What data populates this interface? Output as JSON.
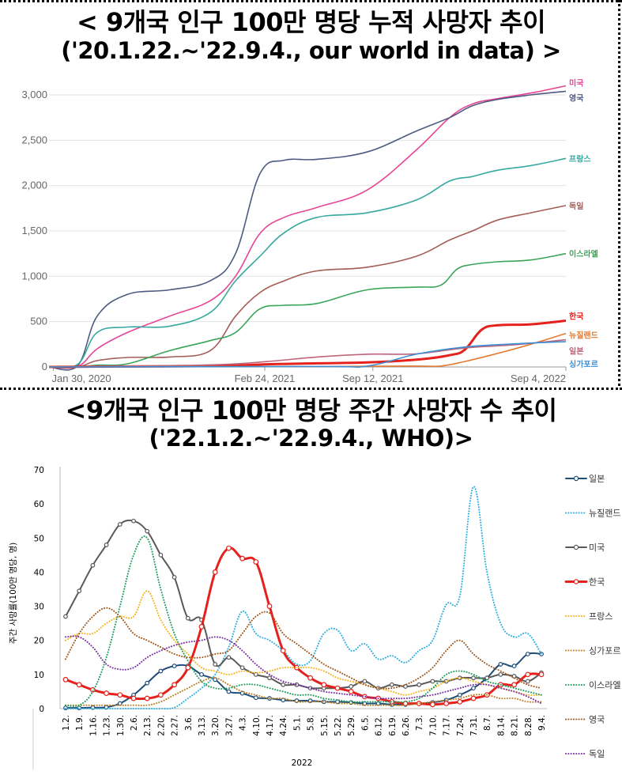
{
  "titles": {
    "chart1_line1": "< 9개국 인구 100만 명당 누적 사망자 추이",
    "chart1_line2": "('20.1.22.~'22.9.4., our world in data) >",
    "chart2_line1": "<9개국 인구 100만 명당 주간 사망자 수 추이",
    "chart2_line2": "('22.1.2.~'22.9.4., WHO)>"
  },
  "chart_data": [
    {
      "type": "line",
      "title": "< 9개국 인구 100만 명당 누적 사망자 추이 ('20.1.22.~'22.9.4., our world in data) >",
      "xlabel": "",
      "ylabel": "",
      "x_range": [
        "2020-01-22",
        "2022-09-04"
      ],
      "x_ticks": [
        {
          "label": "Jan 30, 2020",
          "date": "2020-01-30"
        },
        {
          "label": "Feb 24, 2021",
          "date": "2021-02-24"
        },
        {
          "label": "Sep 12, 2021",
          "date": "2021-09-12"
        },
        {
          "label": "Sep 4, 2022",
          "date": "2022-09-04"
        }
      ],
      "y_ticks": [
        0,
        500,
        1000,
        1500,
        2000,
        2500,
        3000
      ],
      "y_tick_labels": [
        "0",
        "500",
        "1,000",
        "1,500",
        "2,000",
        "2,500",
        "3,000"
      ],
      "ylim": [
        0,
        3000
      ],
      "grid": "horizontal",
      "legend": "end-of-line labels",
      "series": [
        {
          "name": "미국",
          "color": "#e64595",
          "points": [
            [
              "2020-01-22",
              0
            ],
            [
              "2020-03-15",
              5
            ],
            [
              "2020-04-20",
              200
            ],
            [
              "2020-06-15",
              380
            ],
            [
              "2020-09-01",
              560
            ],
            [
              "2020-11-15",
              730
            ],
            [
              "2021-01-01",
              1000
            ],
            [
              "2021-02-15",
              1470
            ],
            [
              "2021-04-01",
              1650
            ],
            [
              "2021-06-01",
              1760
            ],
            [
              "2021-09-01",
              1950
            ],
            [
              "2021-12-01",
              2390
            ],
            [
              "2022-02-01",
              2750
            ],
            [
              "2022-03-15",
              2900
            ],
            [
              "2022-05-01",
              2960
            ],
            [
              "2022-07-01",
              3020
            ],
            [
              "2022-09-04",
              3100
            ]
          ]
        },
        {
          "name": "영국",
          "color": "#4d5a82",
          "points": [
            [
              "2020-01-22",
              0
            ],
            [
              "2020-03-15",
              15
            ],
            [
              "2020-04-20",
              560
            ],
            [
              "2020-06-15",
              800
            ],
            [
              "2020-09-01",
              850
            ],
            [
              "2020-11-15",
              950
            ],
            [
              "2021-01-01",
              1250
            ],
            [
              "2021-02-15",
              2130
            ],
            [
              "2021-04-01",
              2280
            ],
            [
              "2021-06-01",
              2290
            ],
            [
              "2021-09-01",
              2370
            ],
            [
              "2021-12-01",
              2600
            ],
            [
              "2022-02-01",
              2750
            ],
            [
              "2022-03-15",
              2880
            ],
            [
              "2022-05-01",
              2950
            ],
            [
              "2022-07-01",
              3000
            ],
            [
              "2022-09-04",
              3040
            ]
          ]
        },
        {
          "name": "프랑스",
          "color": "#36a99f",
          "points": [
            [
              "2020-01-22",
              0
            ],
            [
              "2020-03-15",
              30
            ],
            [
              "2020-04-20",
              380
            ],
            [
              "2020-06-15",
              440
            ],
            [
              "2020-09-01",
              450
            ],
            [
              "2020-11-15",
              600
            ],
            [
              "2021-01-01",
              950
            ],
            [
              "2021-02-15",
              1220
            ],
            [
              "2021-04-01",
              1480
            ],
            [
              "2021-06-01",
              1650
            ],
            [
              "2021-09-01",
              1700
            ],
            [
              "2021-12-01",
              1840
            ],
            [
              "2022-02-01",
              2050
            ],
            [
              "2022-03-15",
              2100
            ],
            [
              "2022-05-01",
              2170
            ],
            [
              "2022-07-01",
              2220
            ],
            [
              "2022-09-04",
              2300
            ]
          ]
        },
        {
          "name": "독일",
          "color": "#a45d57",
          "points": [
            [
              "2020-01-22",
              0
            ],
            [
              "2020-03-15",
              0
            ],
            [
              "2020-04-20",
              70
            ],
            [
              "2020-06-15",
              105
            ],
            [
              "2020-09-01",
              110
            ],
            [
              "2020-11-15",
              180
            ],
            [
              "2021-01-01",
              560
            ],
            [
              "2021-02-15",
              820
            ],
            [
              "2021-04-01",
              950
            ],
            [
              "2021-06-01",
              1060
            ],
            [
              "2021-09-01",
              1100
            ],
            [
              "2021-12-01",
              1220
            ],
            [
              "2022-02-01",
              1400
            ],
            [
              "2022-03-15",
              1500
            ],
            [
              "2022-05-01",
              1620
            ],
            [
              "2022-07-01",
              1700
            ],
            [
              "2022-09-04",
              1780
            ]
          ]
        },
        {
          "name": "이스라엘",
          "color": "#3aa558",
          "points": [
            [
              "2020-01-22",
              0
            ],
            [
              "2020-03-15",
              0
            ],
            [
              "2020-04-20",
              20
            ],
            [
              "2020-06-15",
              35
            ],
            [
              "2020-09-01",
              180
            ],
            [
              "2020-11-15",
              290
            ],
            [
              "2021-01-01",
              380
            ],
            [
              "2021-02-15",
              640
            ],
            [
              "2021-04-01",
              680
            ],
            [
              "2021-06-01",
              700
            ],
            [
              "2021-09-01",
              850
            ],
            [
              "2021-12-01",
              880
            ],
            [
              "2022-01-15",
              900
            ],
            [
              "2022-02-15",
              1080
            ],
            [
              "2022-03-15",
              1130
            ],
            [
              "2022-05-01",
              1160
            ],
            [
              "2022-07-01",
              1180
            ],
            [
              "2022-09-04",
              1250
            ]
          ]
        },
        {
          "name": "한국",
          "color": "#e4211c",
          "points": [
            [
              "2020-01-22",
              0
            ],
            [
              "2020-06-01",
              5
            ],
            [
              "2020-12-01",
              10
            ],
            [
              "2021-03-01",
              30
            ],
            [
              "2021-06-01",
              40
            ],
            [
              "2021-09-01",
              50
            ],
            [
              "2021-12-01",
              80
            ],
            [
              "2022-02-01",
              130
            ],
            [
              "2022-03-01",
              190
            ],
            [
              "2022-04-01",
              410
            ],
            [
              "2022-05-01",
              460
            ],
            [
              "2022-07-01",
              470
            ],
            [
              "2022-09-04",
              510
            ]
          ]
        },
        {
          "name": "뉴질랜드",
          "color": "#e37a31",
          "points": [
            [
              "2020-01-22",
              0
            ],
            [
              "2020-06-01",
              5
            ],
            [
              "2021-06-01",
              5
            ],
            [
              "2021-12-01",
              10
            ],
            [
              "2022-01-15",
              10
            ],
            [
              "2022-03-01",
              60
            ],
            [
              "2022-05-01",
              150
            ],
            [
              "2022-07-01",
              250
            ],
            [
              "2022-09-04",
              370
            ]
          ]
        },
        {
          "name": "일본",
          "color": "#c0647a",
          "points": [
            [
              "2020-01-22",
              0
            ],
            [
              "2020-06-01",
              10
            ],
            [
              "2020-12-01",
              25
            ],
            [
              "2021-03-01",
              60
            ],
            [
              "2021-06-01",
              110
            ],
            [
              "2021-09-01",
              140
            ],
            [
              "2021-12-01",
              145
            ],
            [
              "2022-03-01",
              210
            ],
            [
              "2022-06-01",
              245
            ],
            [
              "2022-09-04",
              300
            ]
          ]
        },
        {
          "name": "싱가포르",
          "color": "#3b8fd6",
          "points": [
            [
              "2020-01-22",
              0
            ],
            [
              "2021-06-01",
              5
            ],
            [
              "2021-09-01",
              10
            ],
            [
              "2021-12-01",
              140
            ],
            [
              "2022-03-01",
              220
            ],
            [
              "2022-06-01",
              255
            ],
            [
              "2022-09-04",
              280
            ]
          ]
        }
      ]
    },
    {
      "type": "line",
      "title": "<9개국 인구 100만 명당 주간 사망자 수 추이 ('22.1.2.~'22.9.4., WHO)>",
      "xlabel": "2022",
      "ylabel": "주간 사망률(100만 명당, 명)",
      "ylim": [
        0,
        70
      ],
      "y_ticks": [
        0,
        10,
        20,
        30,
        40,
        50,
        60,
        70
      ],
      "grid": "none",
      "legend": "right",
      "categories": [
        "1.2.",
        "1.9.",
        "1.16.",
        "1.23.",
        "1.30.",
        "2.6.",
        "2.13.",
        "2.20.",
        "2.27.",
        "3.6.",
        "3.13.",
        "3.20.",
        "3.27.",
        "4.3.",
        "4.10.",
        "4.17.",
        "4.24.",
        "5.1.",
        "5.8.",
        "5.15.",
        "5.22.",
        "5.29.",
        "6.5.",
        "6.12.",
        "6.19.",
        "6.26.",
        "7.3.",
        "7.10.",
        "7.17.",
        "7.24.",
        "7.31.",
        "8.7.",
        "8.14.",
        "8.21.",
        "8.28.",
        "9.4."
      ],
      "series": [
        {
          "name": "일본",
          "color": "#1f4e79",
          "style": "solid-markers",
          "values": [
            0.2,
            0.2,
            0.3,
            0.4,
            1.5,
            4,
            7.5,
            11,
            12.5,
            12.5,
            10,
            8.5,
            5,
            4.5,
            3.2,
            3,
            2.5,
            2.3,
            2.3,
            2,
            2,
            1.8,
            1.5,
            1.5,
            1.2,
            1.2,
            1.5,
            1.8,
            2.5,
            4,
            6,
            9,
            13,
            12.5,
            16,
            16
          ]
        },
        {
          "name": "뉴질랜드",
          "color": "#27aee0",
          "style": "dotted",
          "values": [
            0,
            0,
            0,
            0,
            0,
            0,
            0,
            0,
            0.3,
            3,
            6,
            10,
            18,
            28.5,
            22,
            20,
            17,
            13,
            14,
            22,
            23,
            17,
            19,
            14.5,
            15.5,
            13.5,
            17,
            20,
            30.5,
            33,
            65,
            40,
            25,
            21,
            22,
            16
          ]
        },
        {
          "name": "미국",
          "color": "#595959",
          "style": "solid-markers",
          "values": [
            27,
            34.5,
            42,
            48,
            54,
            55,
            52,
            45,
            38.5,
            26.5,
            26,
            13,
            15,
            12,
            10,
            9,
            7,
            7,
            6,
            6,
            6,
            6.5,
            8,
            6,
            7,
            6.5,
            7,
            8,
            8,
            9,
            9,
            9,
            10,
            9.5,
            8,
            10.5
          ]
        },
        {
          "name": "한국",
          "color": "#e4211c",
          "style": "bold-markers",
          "values": [
            8.5,
            7,
            5.5,
            4.5,
            4,
            3,
            3,
            4,
            7,
            12,
            24,
            40,
            47,
            44,
            43,
            30,
            17,
            12,
            9,
            7,
            6,
            5,
            3.5,
            3,
            2,
            1.5,
            1.5,
            1.2,
            1.5,
            2,
            3,
            4,
            7,
            7,
            10,
            10
          ]
        },
        {
          "name": "프랑스",
          "color": "#f5b21b",
          "style": "dotted",
          "values": [
            20,
            22,
            22,
            25,
            27,
            27,
            34.5,
            26,
            20,
            16,
            12,
            11,
            10,
            11,
            10.5,
            11,
            12,
            12,
            12,
            11,
            9,
            8,
            7,
            6,
            5,
            4,
            5,
            6,
            8,
            9,
            8,
            7,
            6,
            5,
            4,
            4
          ]
        },
        {
          "name": "싱가포르",
          "color": "#c07f24",
          "style": "dotted",
          "values": [
            1,
            1,
            1,
            1,
            1,
            1,
            1,
            2,
            4,
            6,
            8,
            9,
            7,
            5,
            4,
            3,
            3,
            2,
            2,
            2,
            1.5,
            1.5,
            1,
            1,
            1,
            1,
            1.5,
            2,
            2.5,
            3,
            4,
            4,
            3,
            3,
            2,
            2
          ]
        },
        {
          "name": "이스라엘",
          "color": "#1c9d5b",
          "style": "dotted",
          "values": [
            1,
            1,
            5,
            15,
            30,
            45,
            50,
            35,
            22,
            14,
            8,
            6,
            6,
            7,
            7,
            6,
            5,
            4,
            4,
            3,
            2.5,
            2,
            2,
            2,
            2,
            2,
            3,
            6,
            10,
            11,
            10,
            8,
            7,
            6,
            5,
            4
          ]
        },
        {
          "name": "영국",
          "color": "#a2581c",
          "style": "dotted",
          "values": [
            14.5,
            22,
            27,
            29.5,
            27,
            22,
            20,
            18,
            16,
            15,
            15,
            16,
            17,
            22,
            27,
            28,
            22,
            19,
            16,
            13,
            11,
            9,
            7,
            6,
            6,
            7,
            9,
            12,
            17,
            20,
            16,
            13,
            11,
            9,
            7,
            6
          ]
        },
        {
          "name": "독일",
          "color": "#7a2fa3",
          "style": "dotted",
          "values": [
            21,
            21,
            18,
            13,
            11.5,
            12,
            15,
            17,
            18.5,
            19.5,
            20,
            21,
            20,
            17,
            13,
            10,
            8,
            7,
            6,
            5,
            4.5,
            4,
            3.5,
            3,
            3,
            3,
            3.5,
            4,
            5,
            6,
            7,
            7,
            6,
            5,
            3.5,
            1.5
          ]
        }
      ]
    }
  ]
}
